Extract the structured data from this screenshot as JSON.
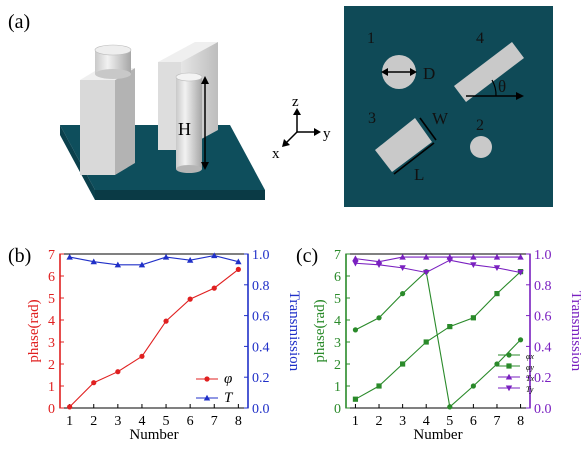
{
  "panel_a": {
    "label": "(a)",
    "dim_H": "H",
    "axis_z": "z",
    "axis_y": "y",
    "axis_x": "x",
    "top_view": {
      "num1": "1",
      "num2": "2",
      "num3": "3",
      "num4": "4",
      "dim_D": "D",
      "dim_W": "W",
      "dim_L": "L",
      "angle": "θ"
    },
    "colors": {
      "substrate": "#0e4e5c",
      "topview_bg": "#0f4a57",
      "pillar": "#d2d2d2"
    }
  },
  "panel_b": {
    "label": "(b)"
  },
  "panel_c": {
    "label": "(c)"
  },
  "chart_data": [
    {
      "type": "line",
      "x": [
        1,
        2,
        3,
        4,
        5,
        6,
        7,
        8
      ],
      "xlabel": "Number",
      "ylabel_left": "phase(rad)",
      "ylabel_right": "Transmission",
      "ylim_left": [
        0,
        7
      ],
      "ylim_right": [
        0,
        1.0
      ],
      "yticks_left": [
        "0",
        "1",
        "2",
        "3",
        "4",
        "5",
        "6",
        "7"
      ],
      "yticks_right": [
        "0.0",
        "0.2",
        "0.4",
        "0.6",
        "0.8",
        "1.0"
      ],
      "xticks": [
        "1",
        "2",
        "3",
        "4",
        "5",
        "6",
        "7",
        "8"
      ],
      "legend": "bottom-right",
      "series": [
        {
          "name": "φ",
          "axis": "left",
          "color": "#e02020",
          "marker": "circle",
          "values": [
            0.05,
            1.15,
            1.65,
            2.35,
            3.95,
            4.95,
            5.45,
            6.3
          ]
        },
        {
          "name": "T",
          "axis": "right",
          "color": "#2030c8",
          "marker": "triangle",
          "values": [
            0.98,
            0.95,
            0.93,
            0.93,
            0.98,
            0.96,
            0.99,
            0.95
          ]
        }
      ]
    },
    {
      "type": "line",
      "x": [
        1,
        2,
        3,
        4,
        5,
        6,
        7,
        8
      ],
      "xlabel": "Number",
      "ylabel_left": "phase(rad)",
      "ylabel_right": "Transmission",
      "ylim_left": [
        0,
        7
      ],
      "ylim_right": [
        0,
        1.0
      ],
      "yticks_left": [
        "0",
        "1",
        "2",
        "3",
        "4",
        "5",
        "6",
        "7"
      ],
      "yticks_right": [
        "0.0",
        "0.2",
        "0.4",
        "0.6",
        "0.8",
        "1.0"
      ],
      "xticks": [
        "1",
        "2",
        "3",
        "4",
        "5",
        "6",
        "7",
        "8"
      ],
      "legend": "bottom-right",
      "series": [
        {
          "name": "φx",
          "axis": "left",
          "color": "#2a8a2a",
          "marker": "circle",
          "values": [
            3.55,
            4.1,
            5.2,
            6.2,
            0.05,
            1.0,
            2.0,
            3.1
          ]
        },
        {
          "name": "φy",
          "axis": "left",
          "color": "#2a8a2a",
          "marker": "square",
          "values": [
            0.4,
            1.0,
            2.0,
            3.0,
            3.7,
            4.1,
            5.2,
            6.2
          ]
        },
        {
          "name": "Tx",
          "axis": "right",
          "color": "#7a20c0",
          "marker": "triangle",
          "values": [
            0.97,
            0.95,
            0.98,
            0.98,
            0.98,
            0.98,
            0.98,
            0.98
          ]
        },
        {
          "name": "Ty",
          "axis": "right",
          "color": "#7a20c0",
          "marker": "triangle-down",
          "values": [
            0.94,
            0.93,
            0.91,
            0.88,
            0.96,
            0.93,
            0.91,
            0.88
          ]
        }
      ]
    }
  ]
}
